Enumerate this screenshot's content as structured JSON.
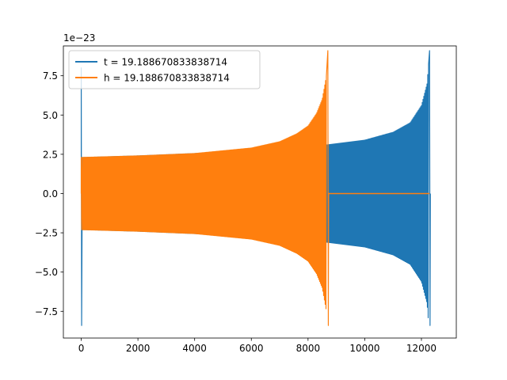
{
  "chart_data": {
    "type": "line",
    "offset_text": "1e−23",
    "scale": 1e-23,
    "xlim": [
      -630,
      13230
    ],
    "ylim": [
      -9.2,
      9.4
    ],
    "x_ticks": [
      0,
      2000,
      4000,
      6000,
      8000,
      10000,
      12000
    ],
    "x_tick_labels": [
      "0",
      "2000",
      "4000",
      "6000",
      "8000",
      "10000",
      "12000"
    ],
    "y_ticks": [
      -7.5,
      -5.0,
      -2.5,
      0.0,
      2.5,
      5.0,
      7.5
    ],
    "y_tick_labels": [
      "−7.5",
      "−5.0",
      "−2.5",
      "0.0",
      "2.5",
      "5.0",
      "7.5"
    ],
    "grid": false,
    "legend_position": "upper-left",
    "series": [
      {
        "name": "t = 19.188670833838714",
        "color": "#1f77b4",
        "n_points": 12288,
        "start_spike": [
          8.0,
          -8.4
        ],
        "envelope": {
          "x": [
            150,
            2000,
            4000,
            6000,
            8000,
            10000,
            11000,
            11600,
            12000,
            12200,
            12288
          ],
          "amplitude": [
            2.3,
            2.4,
            2.55,
            2.75,
            2.95,
            3.4,
            3.9,
            4.5,
            5.6,
            7.0,
            9.1
          ]
        },
        "end_spike": [
          9.1,
          -8.4
        ]
      },
      {
        "name": "h = 19.188670833838714",
        "color": "#ff7f0e",
        "n_points": 8700,
        "start_spike": [
          2.3,
          -2.3
        ],
        "envelope": {
          "x": [
            0,
            2000,
            4000,
            6000,
            7000,
            7600,
            8000,
            8300,
            8500,
            8650,
            8690
          ],
          "amplitude": [
            2.3,
            2.4,
            2.55,
            2.9,
            3.3,
            3.8,
            4.3,
            5.1,
            6.0,
            7.5,
            9.1
          ]
        },
        "end_spike": [
          9.1,
          -8.4
        ],
        "zero_tail": [
          8690,
          12288
        ]
      }
    ]
  }
}
